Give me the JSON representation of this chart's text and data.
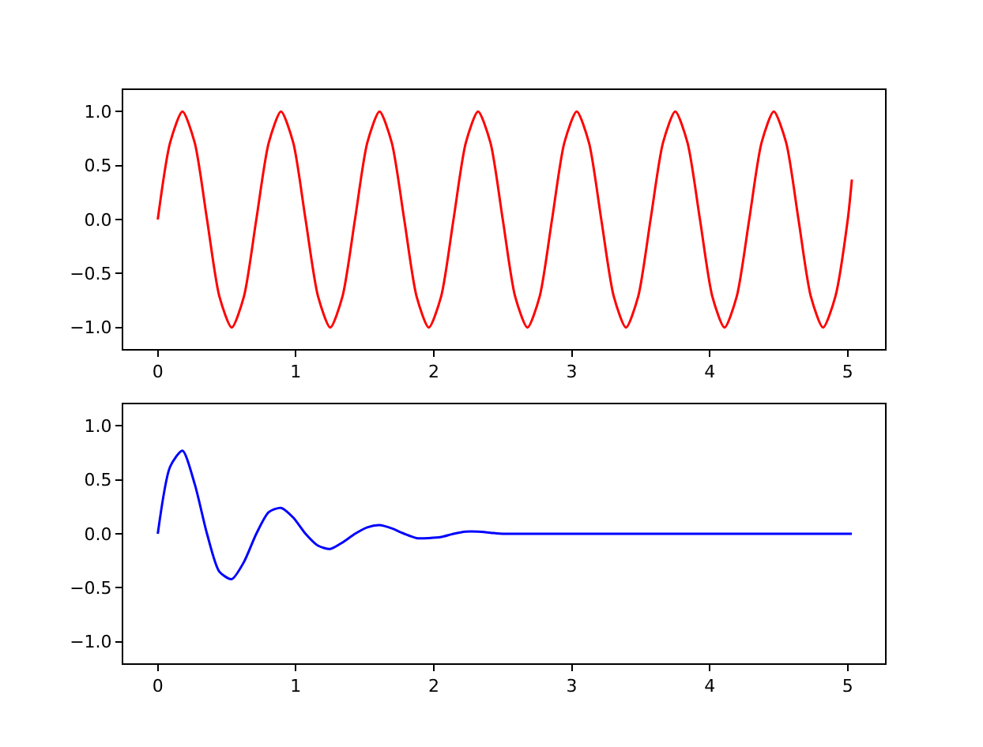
{
  "chart_data": [
    {
      "type": "line",
      "x": [
        0,
        0.089,
        0.179,
        0.268,
        0.357,
        0.446,
        0.536,
        0.625,
        0.714,
        0.804,
        0.893,
        0.982,
        1.071,
        1.161,
        1.25,
        1.339,
        1.429,
        1.518,
        1.607,
        1.696,
        1.786,
        1.875,
        1.964,
        2.054,
        2.143,
        2.232,
        2.321,
        2.411,
        2.5,
        2.589,
        2.679,
        2.768,
        2.857,
        2.946,
        3.036,
        3.125,
        3.214,
        3.304,
        3.393,
        3.482,
        3.571,
        3.661,
        3.75,
        3.839,
        3.929,
        4.018,
        4.107,
        4.196,
        4.286,
        4.375,
        4.464,
        4.554,
        4.643,
        4.732,
        4.821,
        4.911,
        5.0,
        5.03
      ],
      "series": [
        {
          "color": "#ff0000",
          "values": [
            0,
            0.71,
            1,
            0.71,
            0,
            -0.71,
            -1,
            -0.71,
            0,
            0.71,
            1,
            0.71,
            0,
            -0.71,
            -1,
            -0.71,
            0,
            0.71,
            1,
            0.71,
            0,
            -0.71,
            -1,
            -0.71,
            0,
            0.71,
            1,
            0.71,
            0,
            -0.71,
            -1,
            -0.71,
            0,
            0.71,
            1,
            0.71,
            0,
            -0.71,
            -1,
            -0.71,
            0,
            0.71,
            1,
            0.71,
            0,
            -0.71,
            -1,
            -0.71,
            0,
            0.71,
            1,
            0.71,
            0,
            -0.71,
            -1,
            -0.71,
            0,
            0.37
          ]
        }
      ],
      "xlim": [
        -0.25,
        5.27
      ],
      "xticks": [
        0,
        1,
        2,
        3,
        4,
        5
      ],
      "ylim": [
        -1.2,
        1.2
      ],
      "yticks": [
        {
          "value": -1,
          "label": "−1.0"
        },
        {
          "value": -0.5,
          "label": "−0.5"
        },
        {
          "value": 0,
          "label": "0.0"
        },
        {
          "value": 0.5,
          "label": "0.5"
        },
        {
          "value": 1,
          "label": "1.0"
        }
      ],
      "grid": false
    },
    {
      "type": "line",
      "x": [
        0,
        0.089,
        0.179,
        0.268,
        0.357,
        0.446,
        0.536,
        0.625,
        0.714,
        0.804,
        0.893,
        0.982,
        1.071,
        1.161,
        1.25,
        1.339,
        1.429,
        1.518,
        1.607,
        1.696,
        1.786,
        1.875,
        1.964,
        2.054,
        2.143,
        2.232,
        2.321,
        2.411,
        2.5,
        2.589,
        2.679,
        2.768,
        2.857,
        2.946,
        3.036,
        3.125,
        3.214,
        3.304,
        3.393,
        3.482,
        3.571,
        3.661,
        3.75,
        3.839,
        3.929,
        4.018,
        4.107,
        4.196,
        4.286,
        4.375,
        4.464,
        4.554,
        4.643,
        4.732,
        4.821,
        4.911,
        5.0,
        5.03
      ],
      "series": [
        {
          "color": "#0000ff",
          "values": [
            0,
            0.62,
            0.77,
            0.46,
            0,
            -0.35,
            -0.42,
            -0.26,
            0,
            0.2,
            0.24,
            0.15,
            0,
            -0.11,
            -0.14,
            -0.08,
            0,
            0.06,
            0.08,
            0.05,
            0,
            -0.04,
            -0.04,
            -0.03,
            0,
            0.02,
            0.02,
            0.01,
            0,
            0,
            0,
            0,
            0,
            0,
            0,
            0,
            0,
            0,
            0,
            0,
            0,
            0,
            0,
            0,
            0,
            0,
            0,
            0,
            0,
            0,
            0,
            0,
            0,
            0,
            0,
            0,
            0,
            0
          ]
        }
      ],
      "xlim": [
        -0.25,
        5.27
      ],
      "xticks": [
        0,
        1,
        2,
        3,
        4,
        5
      ],
      "ylim": [
        -1.2,
        1.2
      ],
      "yticks": [
        {
          "value": -1,
          "label": "−1.0"
        },
        {
          "value": -0.5,
          "label": "−0.5"
        },
        {
          "value": 0,
          "label": "0.0"
        },
        {
          "value": 0.5,
          "label": "0.5"
        },
        {
          "value": 1,
          "label": "1.0"
        }
      ],
      "grid": false
    }
  ]
}
